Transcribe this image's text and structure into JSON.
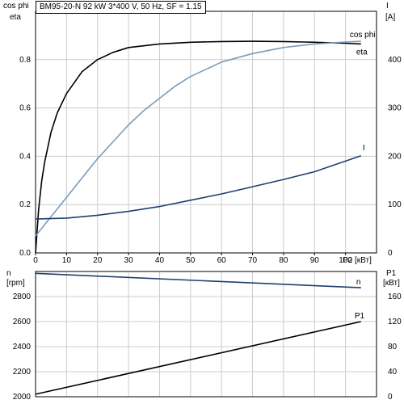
{
  "title": "BM95-20-N   92 kW   3*400 V, 50 Hz, SF = 1.15",
  "chart_data": [
    {
      "type": "line",
      "axis_labels": {
        "y_left_top": "cos phi",
        "y_left_bottom": "eta",
        "y_right_top": "I",
        "y_right_bottom": "[A]",
        "x": "P2 [кВт]"
      },
      "xlim": [
        0,
        110
      ],
      "x_ticks": [
        0,
        10,
        20,
        30,
        40,
        50,
        60,
        70,
        80,
        90,
        100
      ],
      "ylim_left": [
        0,
        1.0
      ],
      "y_ticks_left": [
        0.0,
        0.2,
        0.4,
        0.6,
        0.8
      ],
      "y_tick_labels_left": [
        "0.0",
        "0.2",
        "0.4",
        "0.6",
        "0.8"
      ],
      "ylim_right": [
        0,
        500
      ],
      "y_ticks_right": [
        0,
        100,
        200,
        300,
        400
      ],
      "grid": true,
      "series": [
        {
          "name": "eta",
          "axis": "left",
          "color": "#000000",
          "x": [
            0,
            1,
            2,
            3,
            5,
            7,
            10,
            15,
            20,
            25,
            30,
            40,
            50,
            60,
            70,
            80,
            90,
            100,
            105
          ],
          "y": [
            0.0,
            0.18,
            0.3,
            0.38,
            0.5,
            0.58,
            0.66,
            0.75,
            0.8,
            0.83,
            0.85,
            0.865,
            0.872,
            0.875,
            0.876,
            0.875,
            0.872,
            0.868,
            0.865
          ]
        },
        {
          "name": "cos phi",
          "axis": "left",
          "color": "#7a9bbd",
          "x": [
            0,
            5,
            10,
            15,
            20,
            25,
            30,
            35,
            40,
            45,
            50,
            55,
            60,
            70,
            80,
            90,
            100,
            105
          ],
          "y": [
            0.07,
            0.15,
            0.23,
            0.31,
            0.39,
            0.46,
            0.53,
            0.59,
            0.64,
            0.69,
            0.73,
            0.76,
            0.79,
            0.825,
            0.85,
            0.865,
            0.873,
            0.876
          ]
        },
        {
          "name": "I",
          "axis": "right",
          "color": "#1f3f6e",
          "x": [
            0,
            10,
            20,
            30,
            40,
            50,
            60,
            70,
            80,
            90,
            100,
            105
          ],
          "y": [
            70,
            72,
            78,
            86,
            96,
            109,
            122,
            137,
            152,
            168,
            190,
            201
          ]
        }
      ]
    },
    {
      "type": "line",
      "axis_labels": {
        "y_left_top": "n",
        "y_left_bottom": "[rpm]",
        "y_right_top": "P1",
        "y_right_bottom": "[кВт]"
      },
      "xlim": [
        0,
        110
      ],
      "ylim_left": [
        2000,
        3000
      ],
      "y_ticks_left": [
        2000,
        2200,
        2400,
        2600,
        2800
      ],
      "ylim_right": [
        0,
        200
      ],
      "y_ticks_right": [
        0,
        40,
        80,
        120,
        160
      ],
      "grid": true,
      "series": [
        {
          "name": "n",
          "axis": "left",
          "color": "#1f3f6e",
          "x": [
            0,
            105
          ],
          "y": [
            2985,
            2870
          ]
        },
        {
          "name": "P1",
          "axis": "right",
          "color": "#000000",
          "x": [
            0,
            105
          ],
          "y": [
            4,
            120
          ]
        }
      ]
    }
  ]
}
